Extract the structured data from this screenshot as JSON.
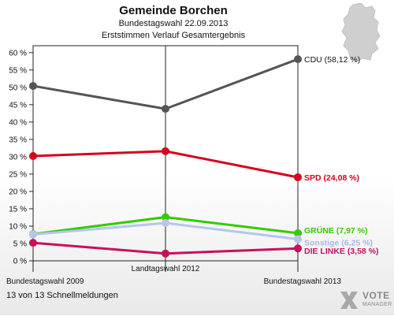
{
  "header": {
    "title": "Gemeinde Borchen",
    "subtitle1": "Bundestagswahl 22.09.2013",
    "subtitle2": "Erststimmen Verlauf Gesamtergebnis"
  },
  "footer": {
    "text": "13 von 13 Schnellmeldungen"
  },
  "logo": {
    "line1": "VOTE",
    "line2": "MANAGER"
  },
  "chart_data": {
    "type": "line",
    "title": "Gemeinde Borchen",
    "categories": [
      "Bundestagswahl 2009",
      "Landtagswahl 2012",
      "Bundestagswahl 2013"
    ],
    "ylim": [
      0,
      62
    ],
    "yticks": [
      0,
      5,
      10,
      15,
      20,
      25,
      30,
      35,
      40,
      45,
      50,
      55,
      60
    ],
    "ytick_labels": [
      "0 %",
      "5 %",
      "10 %",
      "15 %",
      "20 %",
      "25 %",
      "30 %",
      "35 %",
      "40 %",
      "45 %",
      "50 %",
      "55 %",
      "60 %"
    ],
    "grid": false,
    "series": [
      {
        "key": "cdu",
        "label": "CDU (58,12 %)",
        "color": "#555555",
        "labelColor": "#111111",
        "values": [
          50.4,
          43.8,
          58.12
        ]
      },
      {
        "key": "spd",
        "label": "SPD (24,08 %)",
        "color": "#d6001c",
        "labelColor": "#d6001c",
        "values": [
          30.2,
          31.6,
          24.08
        ]
      },
      {
        "key": "gruene",
        "label": "GRÜNE (7,97 %)",
        "color": "#33cc00",
        "labelColor": "#33cc00",
        "values": [
          7.7,
          12.6,
          7.97
        ]
      },
      {
        "key": "sonstige",
        "label": "Sonstige (6,25 %)",
        "color": "#b8c4ee",
        "labelColor": "#aab6ea",
        "values": [
          7.6,
          10.9,
          6.25
        ]
      },
      {
        "key": "linke",
        "label": "DIE LINKE (3,58 %)",
        "color": "#c8105a",
        "labelColor": "#c8105a",
        "values": [
          5.2,
          2.1,
          3.58
        ]
      }
    ]
  }
}
